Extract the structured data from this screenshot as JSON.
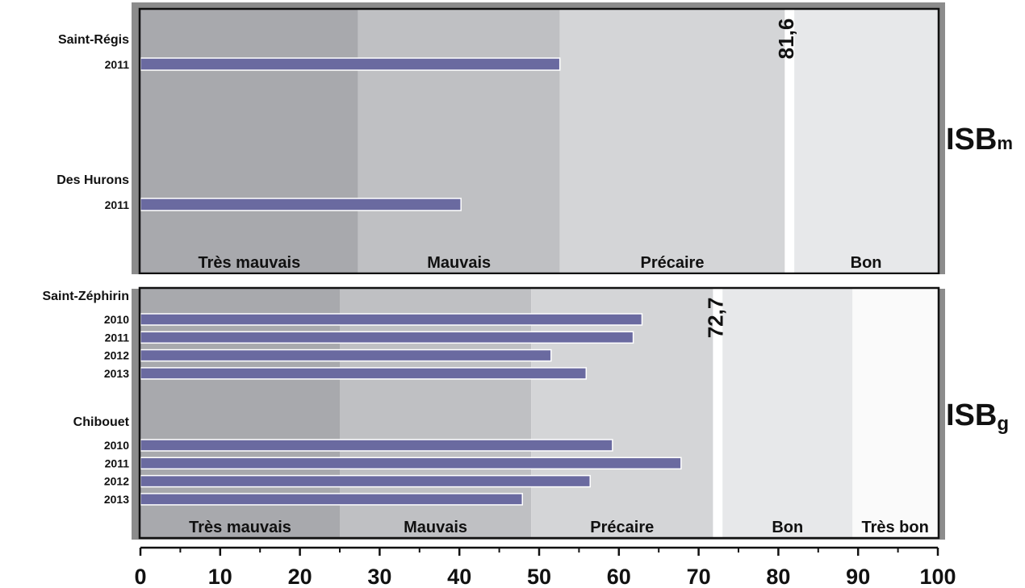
{
  "chart_data": [
    {
      "type": "bar",
      "orientation": "horizontal",
      "index_label": "ISB",
      "index_subscript": "m",
      "xlim": [
        0,
        100
      ],
      "threshold": 81.6,
      "threshold_label": "81,6",
      "classes": [
        {
          "label": "Très mauvais",
          "from": 0,
          "to": 27.3,
          "color": "#a8a9ad"
        },
        {
          "label": "Mauvais",
          "from": 27.3,
          "to": 52.6,
          "color": "#bfc0c3"
        },
        {
          "label": "Précaire",
          "from": 52.6,
          "to": 80.8,
          "color": "#d4d5d7"
        },
        {
          "label": "Bon",
          "from": 82.0,
          "to": 100,
          "color": "#e7e8ea"
        }
      ],
      "groups": [
        {
          "name": "Saint-Régis",
          "bars": [
            {
              "year": "2011",
              "value": 52.6
            }
          ]
        },
        {
          "name": "Des Hurons",
          "bars": [
            {
              "year": "2011",
              "value": 40.2
            }
          ]
        }
      ]
    },
    {
      "type": "bar",
      "orientation": "horizontal",
      "index_label": "ISB",
      "index_subscript": "g",
      "xlim": [
        0,
        100
      ],
      "threshold": 72.7,
      "threshold_label": "72,7",
      "classes": [
        {
          "label": "Très mauvais",
          "from": 0,
          "to": 25,
          "color": "#a8a9ad"
        },
        {
          "label": "Mauvais",
          "from": 25,
          "to": 49,
          "color": "#bfc0c3"
        },
        {
          "label": "Précaire",
          "from": 49,
          "to": 71.8,
          "color": "#d4d5d7"
        },
        {
          "label": "Bon",
          "from": 73,
          "to": 89.3,
          "color": "#e7e8ea"
        },
        {
          "label": "Très bon",
          "from": 89.3,
          "to": 100,
          "color": "#fafafa"
        }
      ],
      "groups": [
        {
          "name": "Saint-Zéphirin",
          "bars": [
            {
              "year": "2010",
              "value": 62.9
            },
            {
              "year": "2011",
              "value": 61.8
            },
            {
              "year": "2012",
              "value": 51.5
            },
            {
              "year": "2013",
              "value": 55.9
            }
          ]
        },
        {
          "name": "Chibouet",
          "bars": [
            {
              "year": "2010",
              "value": 59.2
            },
            {
              "year": "2011",
              "value": 67.8
            },
            {
              "year": "2012",
              "value": 56.4
            },
            {
              "year": "2013",
              "value": 47.9
            }
          ]
        }
      ]
    }
  ],
  "x_axis": {
    "ticks": [
      0,
      10,
      20,
      30,
      40,
      50,
      60,
      70,
      80,
      90,
      100
    ],
    "tick_labels": [
      "0",
      "10",
      "20",
      "30",
      "40",
      "50",
      "60",
      "70",
      "80",
      "90",
      "100"
    ]
  },
  "colors": {
    "bar_fill": "#6a6aa0",
    "bar_stroke": "#ffffff",
    "frame": "#8c8c8c",
    "border": "#111111"
  }
}
